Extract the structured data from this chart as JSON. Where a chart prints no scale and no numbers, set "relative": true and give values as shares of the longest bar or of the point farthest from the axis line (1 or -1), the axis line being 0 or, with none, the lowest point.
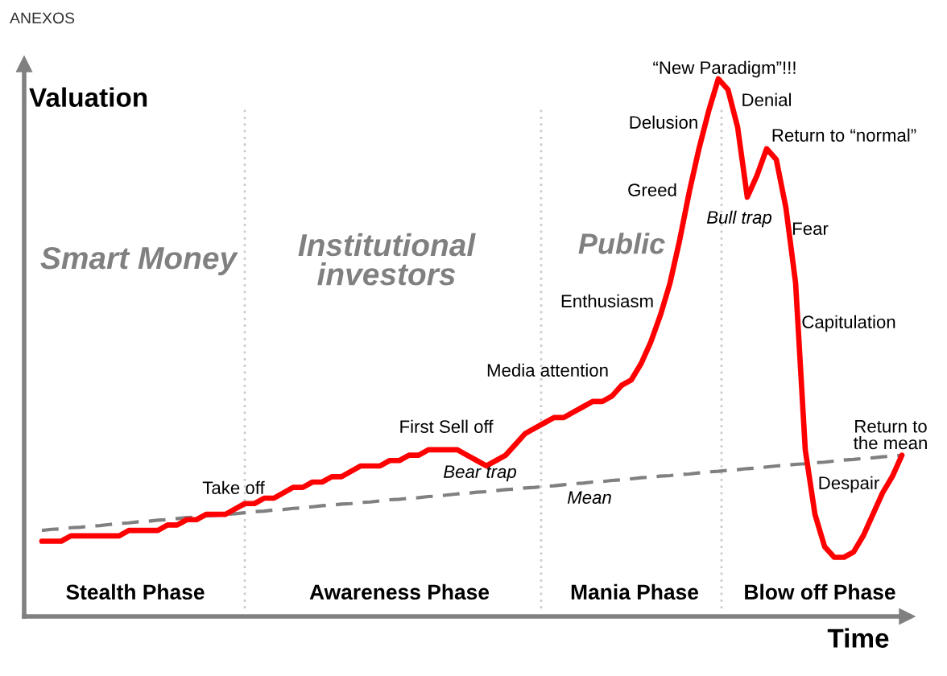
{
  "chart_data": {
    "type": "line",
    "relative": true,
    "xlabel": "Time",
    "ylabel": "Valuation",
    "categories": [
      null,
      null,
      null,
      null,
      null,
      null,
      null,
      null,
      null,
      null,
      null,
      null,
      null,
      null,
      null,
      null,
      null,
      null,
      null,
      null,
      null,
      null,
      null,
      null,
      null,
      null,
      null,
      null,
      null,
      null,
      null,
      null,
      null,
      null,
      null,
      null,
      null,
      null,
      null,
      null,
      null,
      null,
      null,
      null,
      null,
      null,
      null,
      null,
      null,
      null,
      null,
      null,
      null,
      null,
      null,
      null,
      null,
      null,
      null,
      null,
      null,
      null,
      null,
      null,
      null,
      null,
      null,
      null,
      null,
      null,
      null,
      null,
      null,
      null,
      null,
      null,
      null,
      null,
      null,
      null,
      null,
      null,
      null,
      null,
      null,
      null,
      null,
      null,
      null,
      null
    ],
    "series": [
      {
        "color": "#ff0000",
        "values": [
          0.14,
          0.14,
          0.14,
          0.15,
          0.15,
          0.15,
          0.15,
          0.15,
          0.15,
          0.16,
          0.16,
          0.16,
          0.16,
          0.17,
          0.17,
          0.18,
          0.18,
          0.19,
          0.19,
          0.19,
          0.2,
          0.21,
          0.21,
          0.22,
          0.22,
          0.23,
          0.24,
          0.24,
          0.25,
          0.25,
          0.26,
          0.26,
          0.27,
          0.28,
          0.28,
          0.28,
          0.29,
          0.29,
          0.3,
          0.3,
          0.31,
          0.31,
          0.31,
          0.31,
          0.3,
          0.29,
          0.28,
          0.29,
          0.3,
          0.32,
          0.34,
          0.35,
          0.36,
          0.37,
          0.37,
          0.38,
          0.39,
          0.4,
          0.4,
          0.41,
          0.43,
          0.44,
          0.47,
          0.51,
          0.56,
          0.62,
          0.7,
          0.79,
          0.87,
          0.94,
          1.0,
          0.98,
          0.91,
          0.78,
          0.82,
          0.87,
          0.85,
          0.76,
          0.62,
          0.31,
          0.19,
          0.13,
          0.11,
          0.11,
          0.12,
          0.15,
          0.19,
          0.23,
          0.26,
          0.3
        ]
      },
      {
        "color": "#808080",
        "line_style": "dashed",
        "values": [
          0.16,
          0.162,
          0.163,
          0.165,
          0.166,
          0.168,
          0.169,
          0.171,
          0.173,
          0.174,
          0.176,
          0.177,
          0.179,
          0.18,
          0.182,
          0.184,
          0.185,
          0.187,
          0.188,
          0.19,
          0.191,
          0.193,
          0.195,
          0.196,
          0.198,
          0.199,
          0.201,
          0.202,
          0.204,
          0.206,
          0.207,
          0.209,
          0.21,
          0.212,
          0.213,
          0.215,
          0.217,
          0.218,
          0.22,
          0.221,
          0.223,
          0.224,
          0.226,
          0.228,
          0.229,
          0.231,
          0.232,
          0.234,
          0.236,
          0.237,
          0.239,
          0.24,
          0.242,
          0.243,
          0.245,
          0.247,
          0.248,
          0.25,
          0.251,
          0.253,
          0.254,
          0.256,
          0.258,
          0.259,
          0.261,
          0.262,
          0.264,
          0.265,
          0.267,
          0.269,
          0.27,
          0.272,
          0.273,
          0.275,
          0.276,
          0.278,
          0.28,
          0.281,
          0.283,
          0.284,
          0.286,
          0.287,
          0.289,
          0.291,
          0.292,
          0.294,
          0.295,
          0.297,
          0.298,
          0.3
        ]
      }
    ],
    "annotations": [
      "ANEXOS",
      "Smart Money",
      "Institutional\ninvestors",
      "Public",
      "Stealth Phase",
      "Awareness Phase",
      "Mania Phase",
      "Blow off Phase",
      "Take off",
      "First Sell off",
      "Bear trap",
      "Media attention",
      "Enthusiasm",
      "Greed",
      "Delusion",
      "“New Paradigm”!!!",
      "Denial",
      "Return to “normal”",
      "Bull trap",
      "Fear",
      "Capitulation",
      "Return to\nthe mean",
      "Despair",
      "Mean"
    ]
  }
}
